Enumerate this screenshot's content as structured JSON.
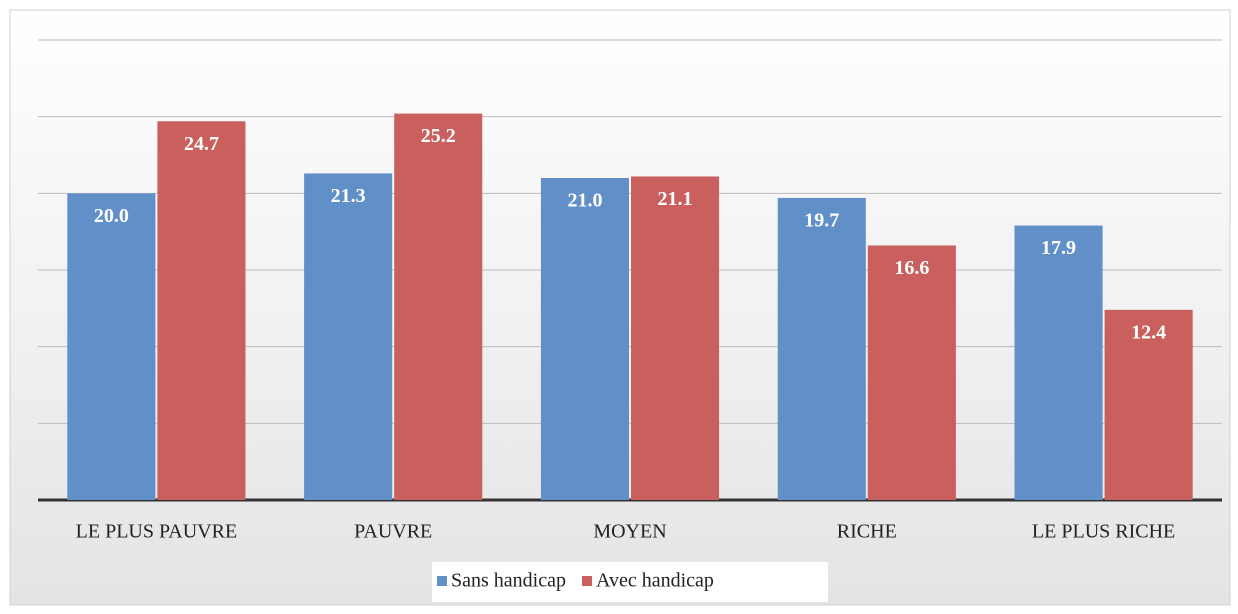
{
  "chart_data": {
    "type": "bar",
    "categories": [
      "LE PLUS PAUVRE",
      "PAUVRE",
      "MOYEN",
      "RICHE",
      "LE PLUS RICHE"
    ],
    "series": [
      {
        "name": "Sans handicap",
        "color": "#6190c8",
        "values": [
          20.0,
          21.3,
          21.0,
          19.7,
          17.9
        ],
        "value_labels": [
          "20.0",
          "21.3",
          "21.0",
          "19.7",
          "17.9"
        ]
      },
      {
        "name": "Avec handicap",
        "color": "#c9605e",
        "values": [
          24.7,
          25.2,
          21.1,
          16.6,
          12.4
        ],
        "value_labels": [
          "24.7",
          "25.2",
          "21.1",
          "16.6",
          "12.4"
        ]
      }
    ],
    "ylim": [
      0,
      30
    ],
    "yticks": [
      0,
      5,
      10,
      15,
      20,
      25,
      30
    ],
    "grid": true,
    "legend": "bottom"
  }
}
